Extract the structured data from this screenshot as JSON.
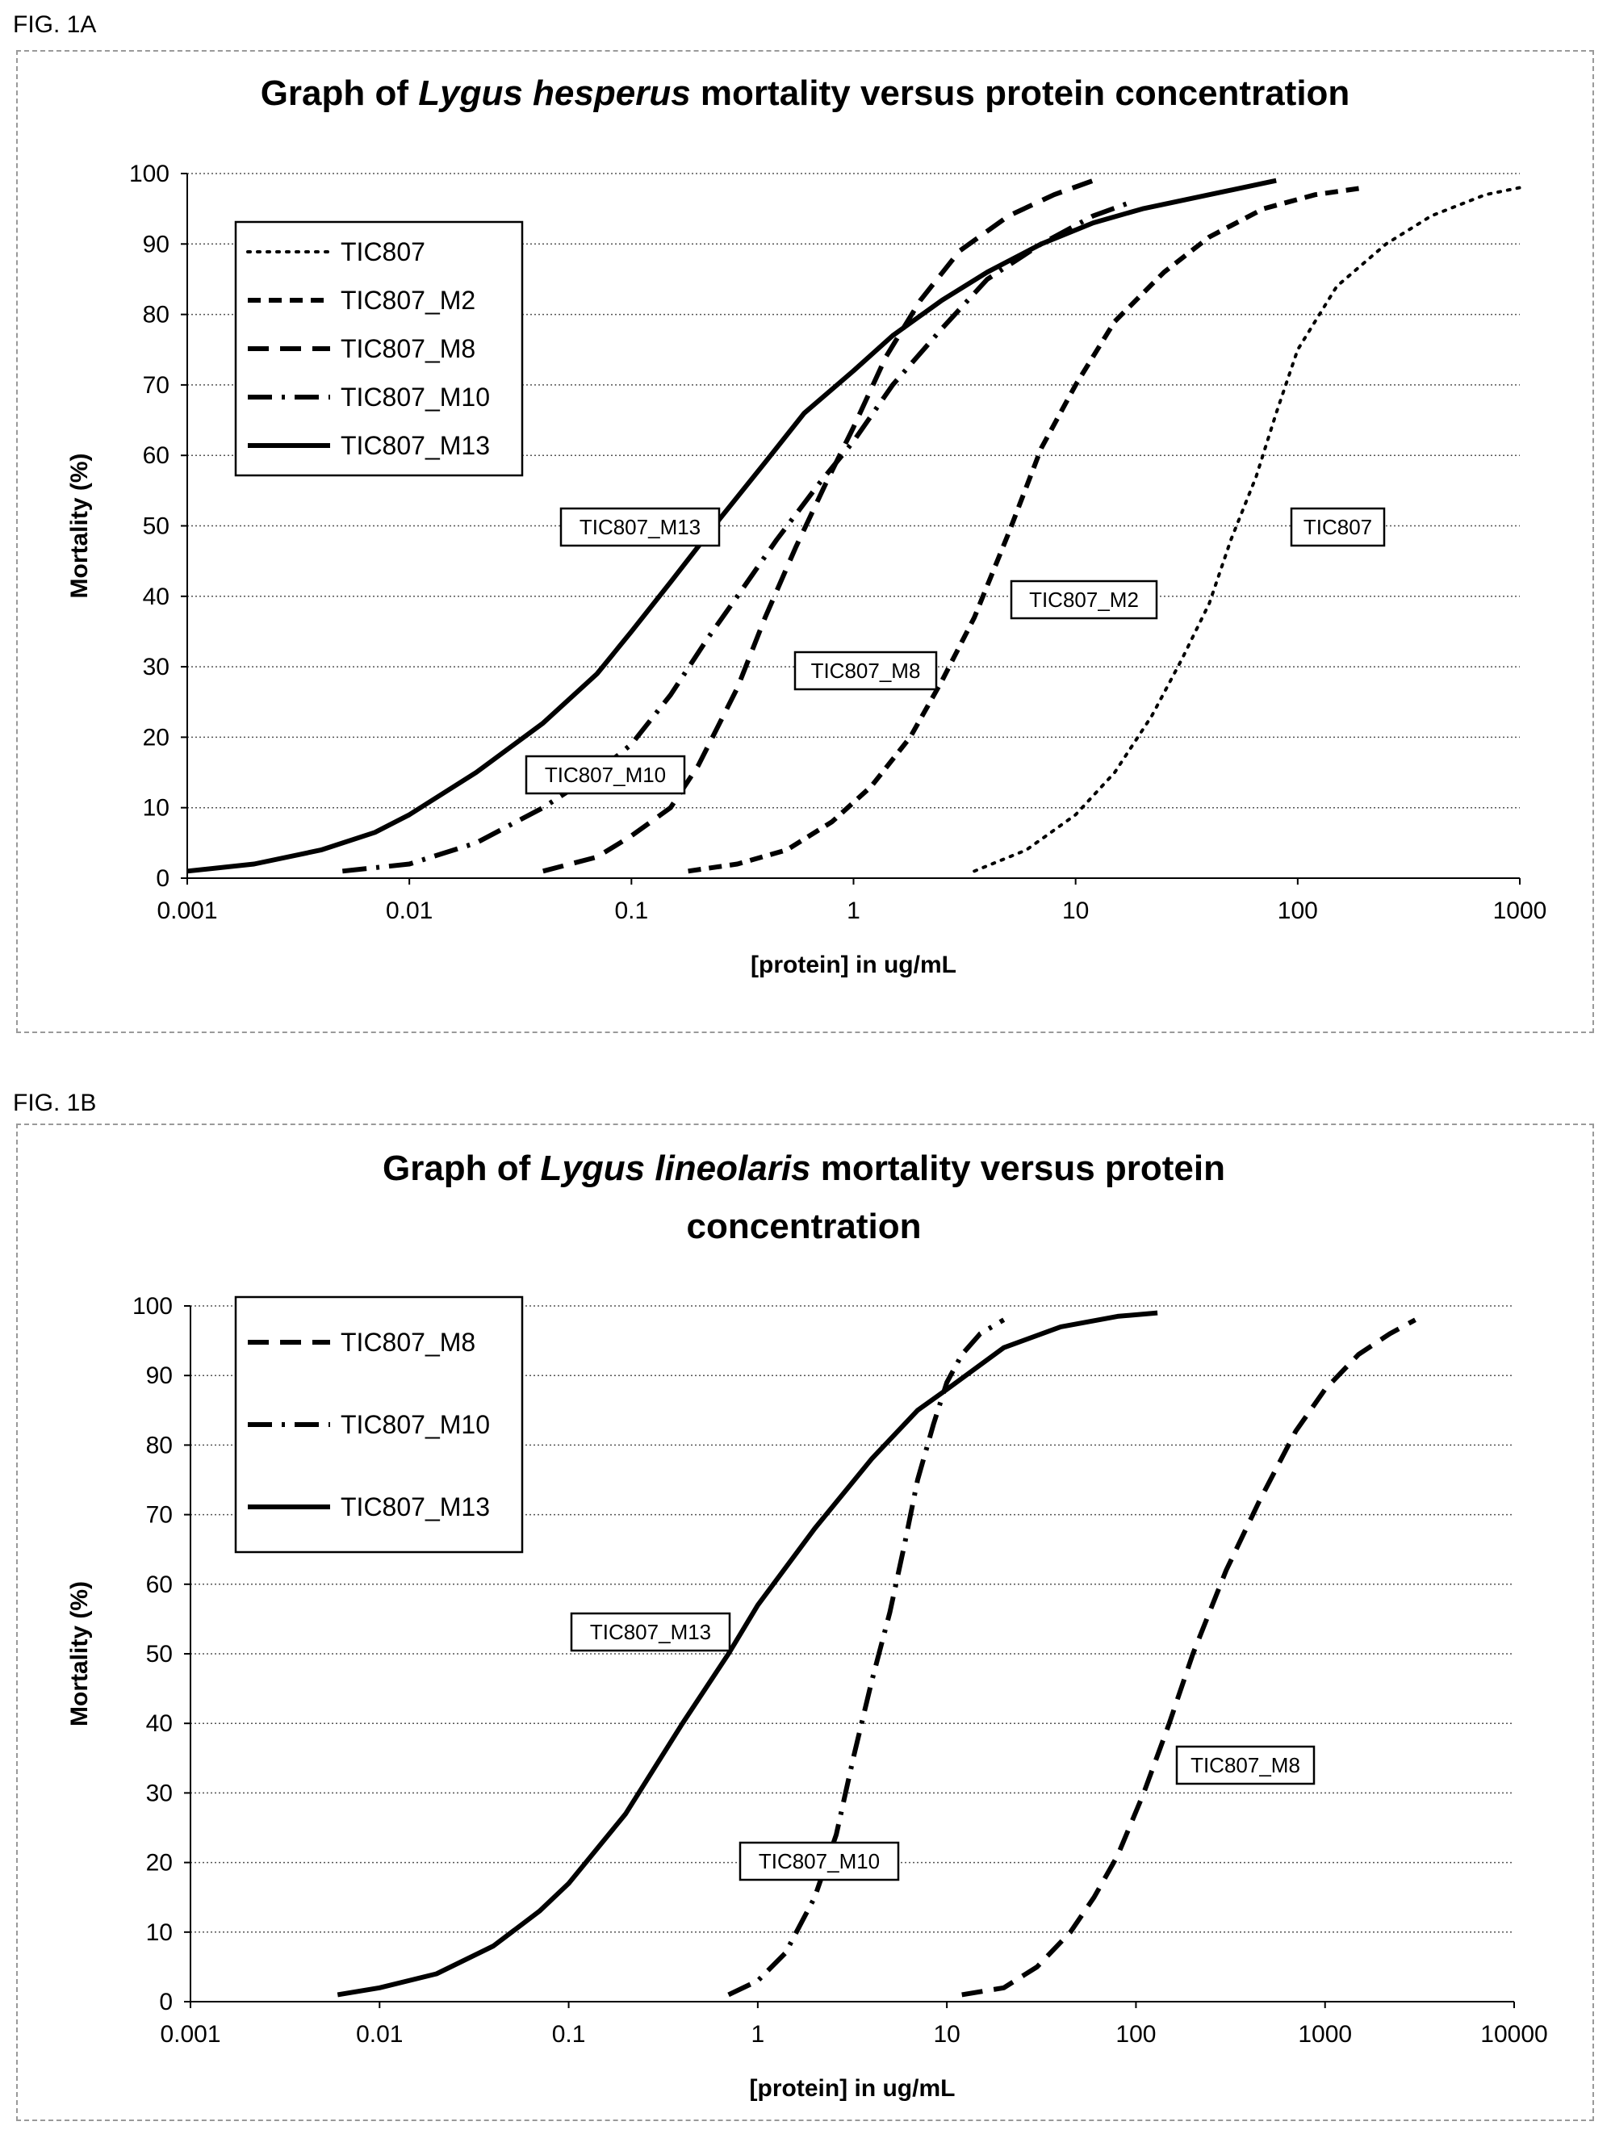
{
  "figures": {
    "a_label": "FIG. 1A",
    "b_label": "FIG. 1B"
  },
  "chart_data": [
    {
      "type": "line",
      "title_parts": [
        {
          "text": "Graph of ",
          "italic": false
        },
        {
          "text": "Lygus hesperus",
          "italic": true
        },
        {
          "text": " mortality versus protein concentration",
          "italic": false
        }
      ],
      "xlabel": "[protein] in ug/mL",
      "ylabel": "Mortality (%)",
      "xscale": "log",
      "xlim": [
        0.001,
        1000
      ],
      "ylim": [
        0,
        100
      ],
      "xticks": [
        0.001,
        0.01,
        0.1,
        1,
        10,
        100,
        1000
      ],
      "xtick_labels": [
        "0.001",
        "0.01",
        "0.1",
        "1",
        "10",
        "100",
        "1000"
      ],
      "yticks": [
        0,
        10,
        20,
        30,
        40,
        50,
        60,
        70,
        80,
        90,
        100
      ],
      "ytick_labels": [
        "0",
        "10",
        "20",
        "30",
        "40",
        "50",
        "60",
        "70",
        "80",
        "90",
        "100"
      ],
      "grid": "horizontal dotted",
      "legend_position": "top-left",
      "series": [
        {
          "name": "TIC807",
          "style": "dotted",
          "callout": "TIC807",
          "x": [
            3.5,
            6,
            10,
            15,
            22,
            30,
            40,
            50,
            65,
            80,
            100,
            150,
            250,
            400,
            700,
            1000
          ],
          "y": [
            1,
            4,
            9,
            15,
            23,
            31,
            39,
            48,
            57,
            66,
            75,
            84,
            90,
            94,
            97,
            98
          ]
        },
        {
          "name": "TIC807_M2",
          "style": "short-dash",
          "callout": "TIC807_M2",
          "x": [
            0.18,
            0.3,
            0.5,
            0.8,
            1.2,
            1.8,
            2.5,
            3.5,
            5,
            7,
            10,
            15,
            25,
            40,
            70,
            120,
            200
          ],
          "y": [
            1,
            2,
            4,
            8,
            13,
            20,
            28,
            37,
            49,
            61,
            70,
            79,
            86,
            91,
            95,
            97,
            98
          ]
        },
        {
          "name": "TIC807_M8",
          "style": "long-dash",
          "callout": "TIC807_M8",
          "x": [
            0.04,
            0.07,
            0.1,
            0.15,
            0.2,
            0.3,
            0.4,
            0.55,
            0.75,
            1,
            1.4,
            2,
            3,
            5,
            8,
            12
          ],
          "y": [
            1,
            3,
            6,
            10,
            16,
            27,
            37,
            47,
            56,
            64,
            74,
            82,
            89,
            94,
            97,
            99
          ]
        },
        {
          "name": "TIC807_M10",
          "style": "dash-dot",
          "callout": "TIC807_M10",
          "x": [
            0.005,
            0.01,
            0.02,
            0.04,
            0.07,
            0.1,
            0.15,
            0.22,
            0.3,
            0.45,
            0.7,
            1,
            1.5,
            2.5,
            4,
            7,
            12,
            18
          ],
          "y": [
            1,
            2,
            5,
            10,
            15,
            19,
            26,
            34,
            40,
            48,
            56,
            62,
            70,
            78,
            85,
            90,
            94,
            96
          ]
        },
        {
          "name": "TIC807_M13",
          "style": "solid",
          "callout": "TIC807_M13",
          "x": [
            0.001,
            0.002,
            0.004,
            0.007,
            0.01,
            0.02,
            0.04,
            0.07,
            0.1,
            0.15,
            0.25,
            0.4,
            0.6,
            1,
            1.5,
            2.5,
            4,
            7,
            12,
            20,
            40,
            80
          ],
          "y": [
            1,
            2,
            4,
            6.5,
            9,
            15,
            22,
            29,
            35,
            42,
            51,
            59,
            66,
            72,
            77,
            82,
            86,
            90,
            93,
            95,
            97,
            99
          ]
        }
      ]
    },
    {
      "type": "line",
      "title_parts_line1": [
        {
          "text": "Graph of ",
          "italic": false
        },
        {
          "text": "Lygus lineolaris",
          "italic": true
        },
        {
          "text": " mortality versus protein",
          "italic": false
        }
      ],
      "title_line2": "concentration",
      "xlabel": "[protein] in ug/mL",
      "ylabel": "Mortality (%)",
      "xscale": "log",
      "xlim": [
        0.001,
        10000
      ],
      "ylim": [
        0,
        100
      ],
      "xticks": [
        0.001,
        0.01,
        0.1,
        1,
        10,
        100,
        1000,
        10000
      ],
      "xtick_labels": [
        "0.001",
        "0.01",
        "0.1",
        "1",
        "10",
        "100",
        "1000",
        "10000"
      ],
      "yticks": [
        0,
        10,
        20,
        30,
        40,
        50,
        60,
        70,
        80,
        90,
        100
      ],
      "ytick_labels": [
        "0",
        "10",
        "20",
        "30",
        "40",
        "50",
        "60",
        "70",
        "80",
        "90",
        "100"
      ],
      "grid": "horizontal dotted",
      "legend_position": "top-left",
      "series": [
        {
          "name": "TIC807_M8",
          "style": "long-dash",
          "callout": "TIC807_M8",
          "x": [
            12,
            20,
            30,
            45,
            60,
            80,
            110,
            150,
            200,
            300,
            450,
            700,
            1000,
            1500,
            2200,
            3000
          ],
          "y": [
            1,
            2,
            5,
            10,
            15,
            21,
            30,
            40,
            50,
            62,
            72,
            82,
            88,
            93,
            96,
            98
          ]
        },
        {
          "name": "TIC807_M10",
          "style": "dash-dot",
          "callout": "TIC807_M10",
          "x": [
            0.7,
            1,
            1.4,
            2,
            2.6,
            3.2,
            4,
            5,
            6,
            7,
            8.5,
            10,
            12,
            15,
            20
          ],
          "y": [
            1,
            3,
            7,
            15,
            24,
            35,
            46,
            56,
            66,
            75,
            83,
            89,
            93,
            96,
            98
          ]
        },
        {
          "name": "TIC807_M13",
          "style": "solid",
          "callout": "TIC807_M13",
          "x": [
            0.006,
            0.01,
            0.02,
            0.04,
            0.07,
            0.1,
            0.2,
            0.4,
            0.7,
            1,
            2,
            4,
            7,
            10,
            20,
            40,
            80,
            130
          ],
          "y": [
            1,
            2,
            4,
            8,
            13,
            17,
            27,
            40,
            50,
            57,
            68,
            78,
            85,
            88,
            94,
            97,
            98.5,
            99
          ]
        }
      ]
    }
  ]
}
